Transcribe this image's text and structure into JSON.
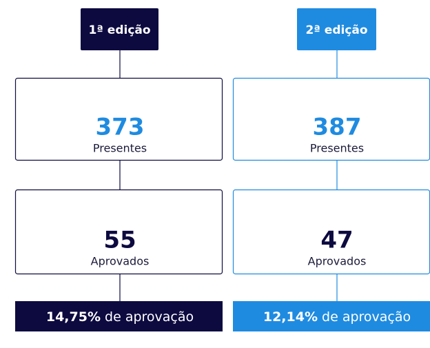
{
  "columns": [
    {
      "edition": "1ª edição",
      "present": {
        "value": 373,
        "label": "Presentes"
      },
      "approved": {
        "value": 55,
        "label": "Aprovados"
      },
      "rate": {
        "value": "14,75%",
        "label": "de aprovação"
      }
    },
    {
      "edition": "2ª edição",
      "present": {
        "value": 387,
        "label": "Presentes"
      },
      "approved": {
        "value": 47,
        "label": "Aprovados"
      },
      "rate": {
        "value": "12,14%",
        "label": "de aprovação"
      }
    }
  ]
}
